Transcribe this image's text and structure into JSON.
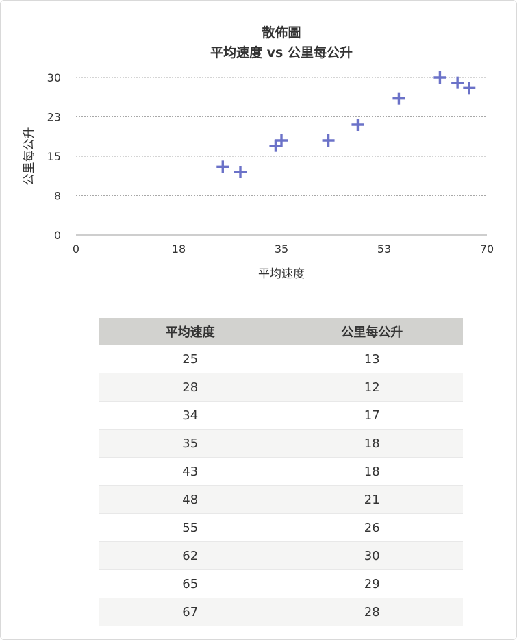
{
  "chart_data": {
    "type": "scatter",
    "title": "散佈圖",
    "subtitle": "平均速度 vs 公里每公升",
    "xlabel": "平均速度",
    "ylabel": "公里每公升",
    "xlim": [
      0,
      70
    ],
    "ylim": [
      0,
      30
    ],
    "x_ticks": [
      "0",
      "18",
      "35",
      "53",
      "70"
    ],
    "x_tick_values": [
      0,
      17.5,
      35,
      52.5,
      70
    ],
    "y_ticks": [
      "0",
      "8",
      "15",
      "23",
      "30"
    ],
    "y_tick_values": [
      0,
      7.5,
      15,
      22.5,
      30
    ],
    "grid": true,
    "marker": "plus",
    "color": "#6b72c8",
    "series": [
      {
        "x": [
          25,
          28,
          34,
          35,
          43,
          48,
          55,
          62,
          65,
          67
        ],
        "y": [
          13,
          12,
          17,
          18,
          18,
          21,
          26,
          30,
          29,
          28
        ]
      }
    ]
  },
  "table": {
    "headers": [
      "平均速度",
      "公里每公升"
    ],
    "rows": [
      [
        "25",
        "13"
      ],
      [
        "28",
        "12"
      ],
      [
        "34",
        "17"
      ],
      [
        "35",
        "18"
      ],
      [
        "43",
        "18"
      ],
      [
        "48",
        "21"
      ],
      [
        "55",
        "26"
      ],
      [
        "62",
        "30"
      ],
      [
        "65",
        "29"
      ],
      [
        "67",
        "28"
      ]
    ]
  }
}
